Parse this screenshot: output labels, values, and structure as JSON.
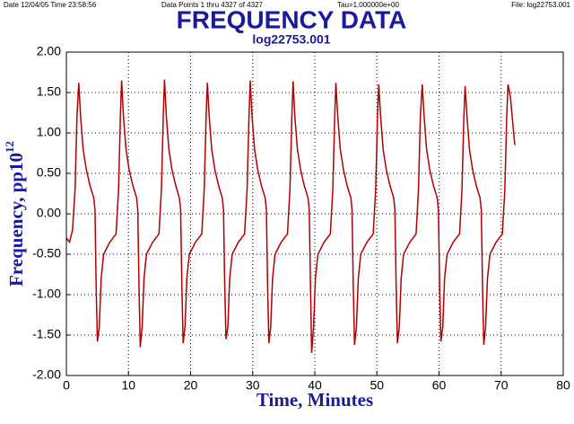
{
  "chart_data": {
    "type": "line",
    "header": [
      "Date  12/04/05  Time  23:58:56",
      "Data Points 1 thru 4327 of 4327",
      "Tau=1.000000e+00",
      "File: log22753.001"
    ],
    "title": "FREQUENCY DATA",
    "subtitle": "log22753.001",
    "x_label": "Time, Minutes",
    "y_label": "Frequency,  pp10",
    "y_label_superscript": "12",
    "color": "#b00000",
    "grid": true,
    "xlim": [
      0,
      80
    ],
    "xticks": [
      0,
      10,
      20,
      30,
      40,
      50,
      60,
      70,
      80
    ],
    "ylim": [
      -2,
      2
    ],
    "yticks": [
      {
        "value": -2,
        "label": "-2.00"
      },
      {
        "value": -1.5,
        "label": "-1.50"
      },
      {
        "value": -1,
        "label": "-1.00"
      },
      {
        "value": -0.5,
        "label": "-0.50"
      },
      {
        "value": 0,
        "label": "0.00"
      },
      {
        "value": 0.5,
        "label": "0.50"
      },
      {
        "value": 1,
        "label": "1.00"
      },
      {
        "value": 1.5,
        "label": "1.50"
      },
      {
        "value": 2,
        "label": "2.00"
      }
    ],
    "x": [
      0,
      0.5,
      1.0,
      1.4,
      1.7,
      2.0,
      2.3,
      2.7,
      3.2,
      3.8,
      4.4,
      4.6,
      4.8,
      5.0,
      5.3,
      5.6,
      6.0,
      7.0,
      8.0,
      8.4,
      8.7,
      8.9,
      9.2,
      9.6,
      10.1,
      10.7,
      11.3,
      11.5,
      11.7,
      11.9,
      12.2,
      12.5,
      12.9,
      13.9,
      14.9,
      15.3,
      15.6,
      15.8,
      16.1,
      16.5,
      17.0,
      17.6,
      18.2,
      18.4,
      18.6,
      18.8,
      19.1,
      19.4,
      19.8,
      20.8,
      21.8,
      22.2,
      22.5,
      22.7,
      23.0,
      23.4,
      23.9,
      24.5,
      25.1,
      25.3,
      25.5,
      25.7,
      26.0,
      26.3,
      26.7,
      27.7,
      28.7,
      29.1,
      29.4,
      29.6,
      29.9,
      30.3,
      30.8,
      31.4,
      32.0,
      32.2,
      32.4,
      32.6,
      32.9,
      33.2,
      33.6,
      34.6,
      35.6,
      36.0,
      36.3,
      36.5,
      36.8,
      37.2,
      37.7,
      38.3,
      38.9,
      39.1,
      39.3,
      39.5,
      39.8,
      40.1,
      40.5,
      41.5,
      42.5,
      42.9,
      43.2,
      43.4,
      43.7,
      44.1,
      44.6,
      45.2,
      45.8,
      46.0,
      46.2,
      46.4,
      46.7,
      47.0,
      47.4,
      48.4,
      49.4,
      49.8,
      50.1,
      50.3,
      50.6,
      51.0,
      51.5,
      52.1,
      52.7,
      52.9,
      53.1,
      53.3,
      53.6,
      53.9,
      54.3,
      55.3,
      56.3,
      56.7,
      57.0,
      57.3,
      57.6,
      58.0,
      58.5,
      59.1,
      59.7,
      59.9,
      60.1,
      60.3,
      60.6,
      60.9,
      61.3,
      62.3,
      63.3,
      63.7,
      64.0,
      64.2,
      64.5,
      64.9,
      65.4,
      66.0,
      66.6,
      66.8,
      67.0,
      67.2,
      67.5,
      67.8,
      68.2,
      69.2,
      70.2,
      70.6,
      70.9,
      71.1,
      71.5,
      71.9,
      72.2
    ],
    "values": [
      -0.3,
      -0.35,
      -0.2,
      0.3,
      1.2,
      1.62,
      1.2,
      0.8,
      0.55,
      0.35,
      0.2,
      0.05,
      -0.9,
      -1.58,
      -1.4,
      -0.8,
      -0.5,
      -0.35,
      -0.25,
      0.3,
      1.2,
      1.65,
      1.2,
      0.8,
      0.55,
      0.35,
      0.2,
      0.05,
      -0.9,
      -1.65,
      -1.4,
      -0.8,
      -0.5,
      -0.35,
      -0.25,
      0.3,
      1.2,
      1.66,
      1.2,
      0.8,
      0.55,
      0.35,
      0.2,
      0.05,
      -0.9,
      -1.6,
      -1.4,
      -0.8,
      -0.5,
      -0.35,
      -0.25,
      0.3,
      1.2,
      1.62,
      1.2,
      0.8,
      0.55,
      0.35,
      0.2,
      0.05,
      -0.9,
      -1.55,
      -1.4,
      -0.8,
      -0.5,
      -0.35,
      -0.25,
      0.3,
      1.2,
      1.65,
      1.2,
      0.8,
      0.55,
      0.35,
      0.2,
      0.05,
      -0.9,
      -1.6,
      -1.4,
      -0.8,
      -0.5,
      -0.35,
      -0.25,
      0.3,
      1.2,
      1.64,
      1.2,
      0.8,
      0.55,
      0.35,
      0.2,
      0.05,
      -0.9,
      -1.72,
      -1.4,
      -0.8,
      -0.5,
      -0.35,
      -0.25,
      0.3,
      1.2,
      1.62,
      1.2,
      0.8,
      0.55,
      0.35,
      0.2,
      0.05,
      -0.9,
      -1.62,
      -1.4,
      -0.8,
      -0.5,
      -0.35,
      -0.25,
      0.3,
      1.2,
      1.6,
      1.2,
      0.8,
      0.55,
      0.35,
      0.2,
      0.05,
      -0.9,
      -1.6,
      -1.4,
      -0.8,
      -0.5,
      -0.35,
      -0.25,
      0.3,
      1.2,
      1.6,
      1.2,
      0.8,
      0.55,
      0.35,
      0.2,
      0.05,
      -0.9,
      -1.58,
      -1.4,
      -0.8,
      -0.5,
      -0.35,
      -0.25,
      0.3,
      1.2,
      1.58,
      1.2,
      0.8,
      0.55,
      0.35,
      0.2,
      0.05,
      -0.9,
      -1.62,
      -1.4,
      -0.8,
      -0.5,
      -0.35,
      -0.25,
      0.3,
      1.2,
      1.6,
      1.45,
      1.1,
      0.85
    ]
  }
}
